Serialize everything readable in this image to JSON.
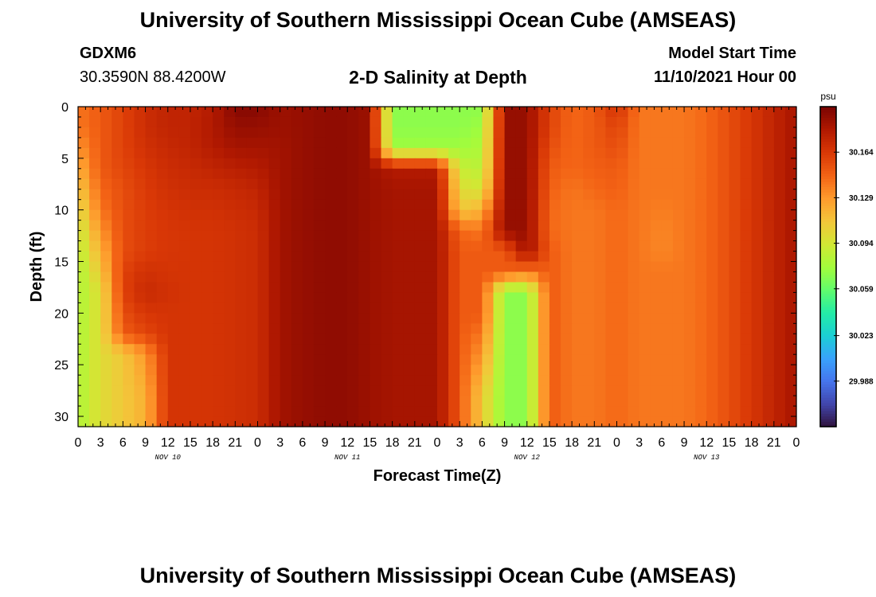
{
  "page": {
    "title": "University of Southern Mississippi Ocean Cube (AMSEAS)",
    "title_repeat": "University of Southern Mississippi Ocean Cube (AMSEAS)",
    "station": "GDXM6",
    "coords": "30.3590N  88.4200W",
    "plot_title": "2-D Salinity at Depth",
    "start_label": "Model Start Time",
    "start_value": "11/10/2021 Hour 00"
  },
  "chart_data": {
    "type": "heatmap",
    "title": "2-D Salinity at Depth",
    "xlabel": "Forecast Time(Z)",
    "ylabel": "Depth (ft)",
    "x_hours_range": [
      0,
      96
    ],
    "y_range": [
      0,
      31
    ],
    "y_reversed": true,
    "x_tick_labels": [
      "0",
      "3",
      "6",
      "9",
      "12",
      "15",
      "18",
      "21",
      "0",
      "3",
      "6",
      "9",
      "12",
      "15",
      "18",
      "21",
      "0",
      "3",
      "6",
      "9",
      "12",
      "15",
      "18",
      "21",
      "0",
      "3",
      "6",
      "9",
      "12",
      "15",
      "18",
      "21",
      "0"
    ],
    "day_labels": [
      "NOV 10",
      "NOV 11",
      "NOV 12",
      "NOV 13"
    ],
    "y_ticks": [
      0,
      5,
      10,
      15,
      20,
      25,
      30
    ],
    "colorbar": {
      "unit": "psu",
      "range": [
        29.953,
        30.199
      ],
      "tick_labels": [
        "30.164",
        "30.129",
        "30.094",
        "30.059",
        "30.023",
        "29.988"
      ],
      "tick_values": [
        30.164,
        30.129,
        30.094,
        30.059,
        30.023,
        29.988
      ]
    },
    "colormap": [
      "#30123b",
      "#4145ab",
      "#4675ed",
      "#39a2fc",
      "#1bcfd4",
      "#24eca6",
      "#61fc6c",
      "#a4fc3b",
      "#d1e834",
      "#f3c63a",
      "#fe9b2d",
      "#f36315",
      "#d93806",
      "#b11901",
      "#7a0402"
    ],
    "grid": {
      "depths_ft": [
        0,
        2,
        4,
        6,
        8,
        10,
        12,
        14,
        16,
        18,
        20,
        22,
        24,
        26,
        28,
        30
      ],
      "hours": [
        0,
        3,
        6,
        9,
        12,
        15,
        18,
        21,
        24,
        27,
        30,
        33,
        36,
        39,
        42,
        45,
        48,
        51,
        54,
        57,
        60,
        63,
        66,
        69,
        72,
        75,
        78,
        81,
        84,
        87,
        90,
        93,
        96
      ],
      "salinity_rows": [
        [
          30.14,
          30.15,
          30.16,
          30.17,
          30.175,
          30.175,
          30.18,
          30.195,
          30.195,
          30.188,
          30.19,
          30.192,
          30.192,
          30.188,
          30.07,
          30.07,
          30.07,
          30.07,
          30.07,
          30.19,
          30.19,
          30.16,
          30.145,
          30.15,
          30.168,
          30.14,
          30.14,
          30.14,
          30.145,
          30.155,
          30.165,
          30.175,
          30.185
        ],
        [
          30.14,
          30.15,
          30.16,
          30.17,
          30.175,
          30.175,
          30.182,
          30.19,
          30.19,
          30.188,
          30.19,
          30.192,
          30.192,
          30.188,
          30.07,
          30.07,
          30.07,
          30.07,
          30.075,
          30.19,
          30.19,
          30.16,
          30.145,
          30.15,
          30.16,
          30.14,
          30.14,
          30.14,
          30.145,
          30.155,
          30.165,
          30.175,
          30.185
        ],
        [
          30.13,
          30.15,
          30.16,
          30.168,
          30.172,
          30.175,
          30.18,
          30.185,
          30.185,
          30.186,
          30.19,
          30.192,
          30.192,
          30.188,
          30.075,
          30.075,
          30.075,
          30.075,
          30.08,
          30.19,
          30.19,
          30.155,
          30.145,
          30.15,
          30.155,
          30.14,
          30.14,
          30.14,
          30.145,
          30.155,
          30.165,
          30.175,
          30.185
        ],
        [
          30.12,
          30.15,
          30.158,
          30.165,
          30.17,
          30.172,
          30.175,
          30.178,
          30.18,
          30.186,
          30.19,
          30.192,
          30.192,
          30.188,
          30.18,
          30.18,
          30.18,
          30.09,
          30.085,
          30.19,
          30.19,
          30.15,
          30.145,
          30.148,
          30.15,
          30.14,
          30.14,
          30.14,
          30.145,
          30.155,
          30.165,
          30.175,
          30.185
        ],
        [
          30.11,
          30.145,
          30.155,
          30.163,
          30.168,
          30.17,
          30.17,
          30.172,
          30.175,
          30.186,
          30.19,
          30.192,
          30.192,
          30.188,
          30.185,
          30.185,
          30.185,
          30.1,
          30.095,
          30.19,
          30.19,
          30.148,
          30.14,
          30.145,
          30.148,
          30.14,
          30.14,
          30.14,
          30.145,
          30.155,
          30.165,
          30.175,
          30.185
        ],
        [
          30.1,
          30.14,
          30.155,
          30.162,
          30.166,
          30.168,
          30.168,
          30.17,
          30.172,
          30.186,
          30.19,
          30.192,
          30.192,
          30.188,
          30.185,
          30.185,
          30.185,
          30.11,
          30.12,
          30.19,
          30.19,
          30.145,
          30.14,
          30.14,
          30.145,
          30.14,
          30.138,
          30.14,
          30.145,
          30.155,
          30.165,
          30.175,
          30.185
        ],
        [
          30.09,
          30.13,
          30.155,
          30.162,
          30.165,
          30.166,
          30.166,
          30.168,
          30.17,
          30.186,
          30.19,
          30.192,
          30.192,
          30.188,
          30.185,
          30.185,
          30.185,
          30.145,
          30.14,
          30.19,
          30.19,
          30.145,
          30.14,
          30.14,
          30.145,
          30.14,
          30.135,
          30.14,
          30.145,
          30.155,
          30.165,
          30.175,
          30.185
        ],
        [
          30.085,
          30.12,
          30.155,
          30.162,
          30.165,
          30.166,
          30.166,
          30.168,
          30.17,
          30.186,
          30.19,
          30.192,
          30.192,
          30.188,
          30.185,
          30.185,
          30.185,
          30.15,
          30.15,
          30.15,
          30.188,
          30.15,
          30.14,
          30.14,
          30.145,
          30.14,
          30.135,
          30.14,
          30.145,
          30.155,
          30.165,
          30.175,
          30.185
        ],
        [
          30.08,
          30.11,
          30.16,
          30.168,
          30.166,
          30.166,
          30.166,
          30.168,
          30.17,
          30.186,
          30.19,
          30.192,
          30.192,
          30.188,
          30.185,
          30.185,
          30.185,
          30.15,
          30.15,
          30.15,
          30.14,
          30.15,
          30.14,
          30.14,
          30.145,
          30.14,
          30.14,
          30.14,
          30.145,
          30.155,
          30.165,
          30.175,
          30.185
        ],
        [
          30.08,
          30.1,
          30.16,
          30.172,
          30.168,
          30.166,
          30.166,
          30.168,
          30.17,
          30.186,
          30.19,
          30.192,
          30.192,
          30.188,
          30.185,
          30.185,
          30.185,
          30.15,
          30.15,
          30.07,
          30.07,
          30.15,
          30.14,
          30.14,
          30.145,
          30.14,
          30.14,
          30.14,
          30.145,
          30.155,
          30.165,
          30.175,
          30.185
        ],
        [
          30.08,
          30.1,
          30.155,
          30.165,
          30.166,
          30.166,
          30.166,
          30.168,
          30.17,
          30.186,
          30.19,
          30.192,
          30.192,
          30.188,
          30.185,
          30.185,
          30.185,
          30.15,
          30.15,
          30.07,
          30.07,
          30.15,
          30.14,
          30.14,
          30.145,
          30.14,
          30.14,
          30.14,
          30.145,
          30.155,
          30.165,
          30.175,
          30.185
        ],
        [
          30.08,
          30.1,
          30.15,
          30.158,
          30.166,
          30.166,
          30.166,
          30.168,
          30.17,
          30.186,
          30.19,
          30.192,
          30.192,
          30.188,
          30.185,
          30.185,
          30.185,
          30.15,
          30.14,
          30.07,
          30.07,
          30.15,
          30.14,
          30.14,
          30.145,
          30.14,
          30.14,
          30.14,
          30.145,
          30.155,
          30.165,
          30.175,
          30.185
        ],
        [
          30.08,
          30.1,
          30.11,
          30.13,
          30.166,
          30.166,
          30.166,
          30.168,
          30.17,
          30.186,
          30.19,
          30.192,
          30.192,
          30.188,
          30.185,
          30.185,
          30.185,
          30.15,
          30.13,
          30.07,
          30.07,
          30.15,
          30.14,
          30.14,
          30.145,
          30.14,
          30.14,
          30.14,
          30.145,
          30.155,
          30.165,
          30.175,
          30.185
        ],
        [
          30.08,
          30.1,
          30.11,
          30.125,
          30.166,
          30.166,
          30.166,
          30.168,
          30.17,
          30.186,
          30.19,
          30.192,
          30.192,
          30.188,
          30.185,
          30.185,
          30.185,
          30.15,
          30.12,
          30.07,
          30.07,
          30.15,
          30.14,
          30.14,
          30.145,
          30.14,
          30.14,
          30.14,
          30.145,
          30.155,
          30.165,
          30.175,
          30.185
        ],
        [
          30.08,
          30.1,
          30.11,
          30.12,
          30.166,
          30.166,
          30.166,
          30.168,
          30.17,
          30.186,
          30.19,
          30.192,
          30.192,
          30.188,
          30.185,
          30.185,
          30.185,
          30.15,
          30.11,
          30.07,
          30.07,
          30.15,
          30.14,
          30.14,
          30.145,
          30.14,
          30.14,
          30.14,
          30.145,
          30.155,
          30.165,
          30.175,
          30.185
        ],
        [
          30.08,
          30.1,
          30.11,
          30.12,
          30.166,
          30.166,
          30.166,
          30.168,
          30.17,
          30.186,
          30.19,
          30.192,
          30.192,
          30.188,
          30.185,
          30.185,
          30.185,
          30.15,
          30.11,
          30.07,
          30.07,
          30.15,
          30.14,
          30.14,
          30.145,
          30.14,
          30.14,
          30.14,
          30.145,
          30.155,
          30.165,
          30.175,
          30.185
        ]
      ]
    }
  }
}
